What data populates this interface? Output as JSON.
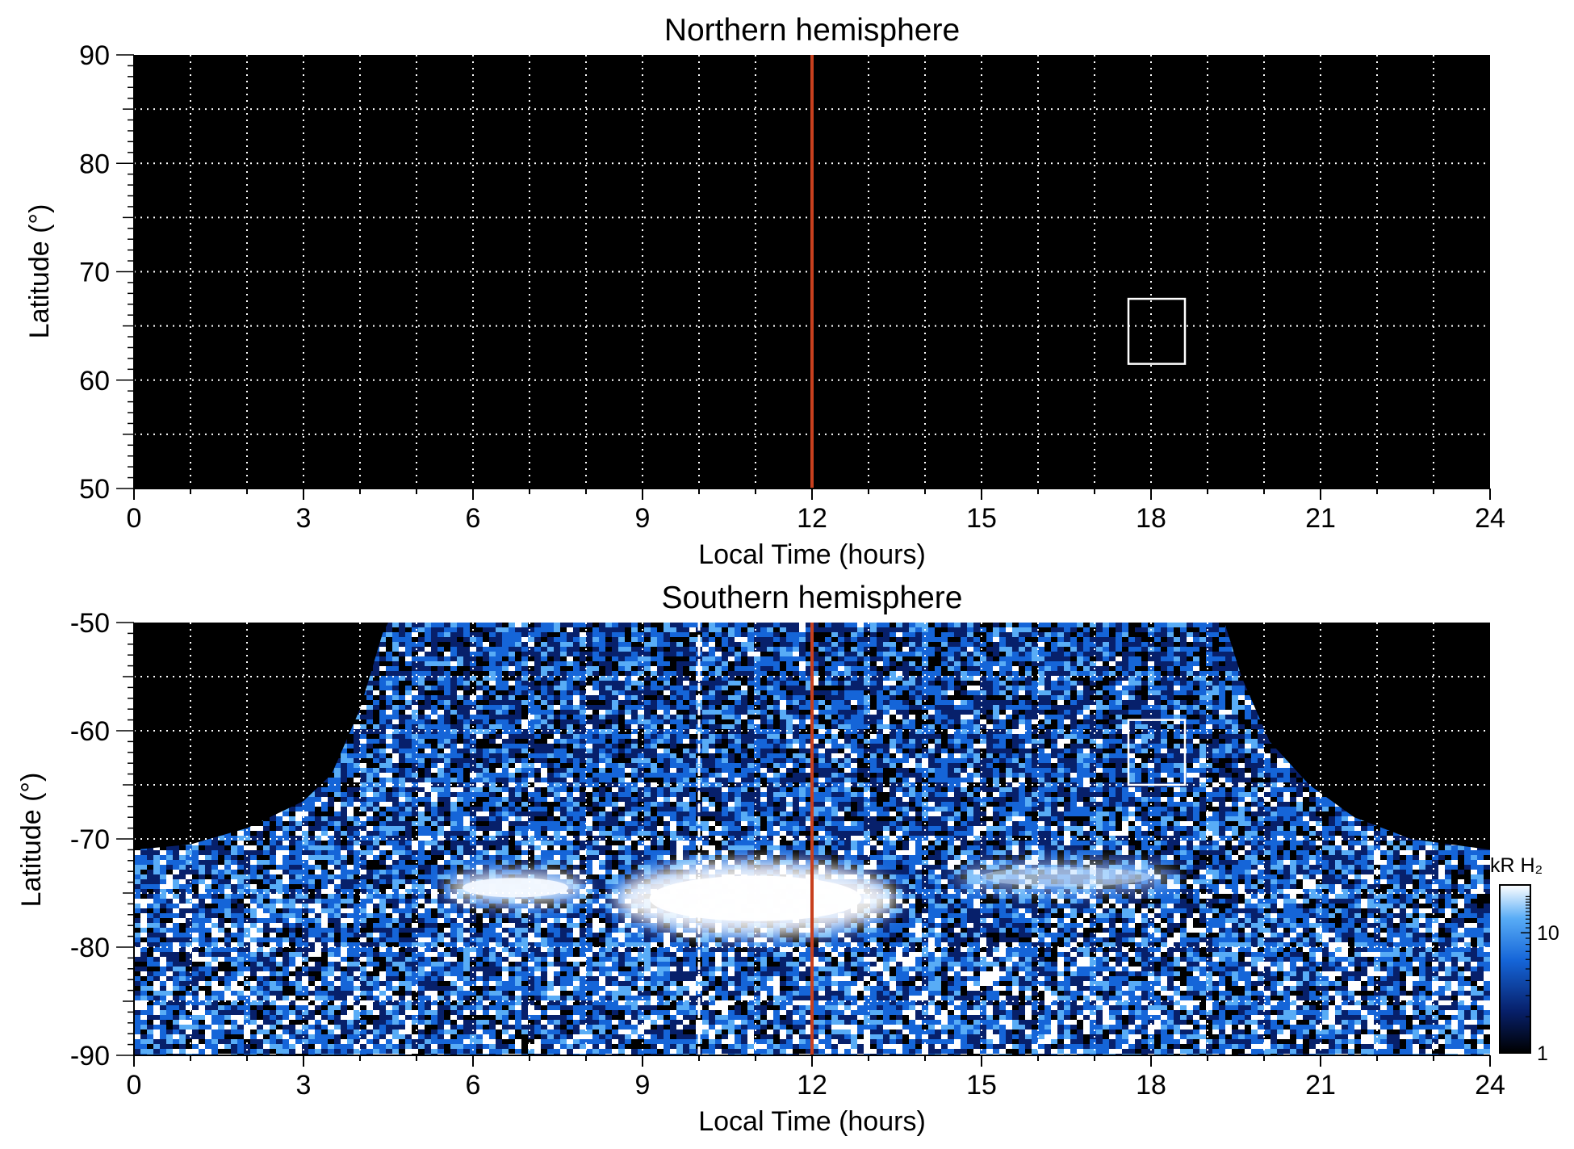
{
  "chart_data": [
    {
      "type": "heatmap",
      "title": "Northern hemisphere",
      "xlabel": "Local Time (hours)",
      "ylabel": "Latitude (°)",
      "xlim": [
        0,
        24
      ],
      "ylim": [
        50,
        90
      ],
      "xticks": [
        "0",
        "3",
        "6",
        "9",
        "12",
        "15",
        "18",
        "21",
        "24"
      ],
      "yticks": [
        "50",
        "60",
        "70",
        "80",
        "90"
      ],
      "grid": true,
      "grid_x_step_hours": 1,
      "grid_y_step_deg": 5,
      "noon_line": {
        "x": 12,
        "color": "#c8401e"
      },
      "box": {
        "x": [
          17.6,
          18.6
        ],
        "y": [
          61.5,
          67.5
        ]
      },
      "intensity": "no emission (all black)",
      "background": "#000000"
    },
    {
      "type": "heatmap",
      "title": "Southern hemisphere",
      "xlabel": "Local Time (hours)",
      "ylabel": "Latitude (°)",
      "xlim": [
        0,
        24
      ],
      "ylim": [
        -90,
        -50
      ],
      "xticks": [
        "0",
        "3",
        "6",
        "9",
        "12",
        "15",
        "18",
        "21",
        "24"
      ],
      "yticks": [
        "-90",
        "-80",
        "-70",
        "-60",
        "-50"
      ],
      "grid": true,
      "grid_x_step_hours": 1,
      "grid_y_step_deg": 5,
      "noon_line": {
        "x": 12,
        "color": "#c8401e"
      },
      "dashed_line": {
        "x": 10,
        "color": "#ffffff"
      },
      "box": {
        "x": [
          17.6,
          18.6
        ],
        "y": [
          -65,
          -59
        ]
      },
      "coverage_edge": [
        [
          0,
          -71
        ],
        [
          1,
          -70.5
        ],
        [
          2,
          -69
        ],
        [
          3,
          -66.5
        ],
        [
          3.5,
          -64
        ],
        [
          4,
          -58
        ],
        [
          4.4,
          -51
        ],
        [
          4.5,
          -50
        ],
        [
          19.3,
          -50
        ],
        [
          19.6,
          -55
        ],
        [
          20.1,
          -61
        ],
        [
          20.8,
          -65
        ],
        [
          21.6,
          -68
        ],
        [
          22.6,
          -70
        ],
        [
          24,
          -71
        ]
      ],
      "bright_regions": [
        {
          "x": [
            5.5,
            8.0
          ],
          "y": [
            -76,
            -73
          ],
          "level": "high"
        },
        {
          "x": [
            8.5,
            13.5
          ],
          "y": [
            -79,
            -72
          ],
          "level": "saturated"
        },
        {
          "x": [
            14.5,
            18.5
          ],
          "y": [
            -75,
            -72
          ],
          "level": "medium"
        }
      ],
      "colorbar": {
        "label": "kR H₂",
        "scale": "log",
        "range": [
          1,
          25
        ],
        "tick_labels": [
          "1",
          "10"
        ],
        "tick_values": [
          1,
          10
        ],
        "colors": [
          "#000000",
          "#07206b",
          "#1565d8",
          "#58acf6",
          "#ffffff"
        ]
      }
    }
  ]
}
